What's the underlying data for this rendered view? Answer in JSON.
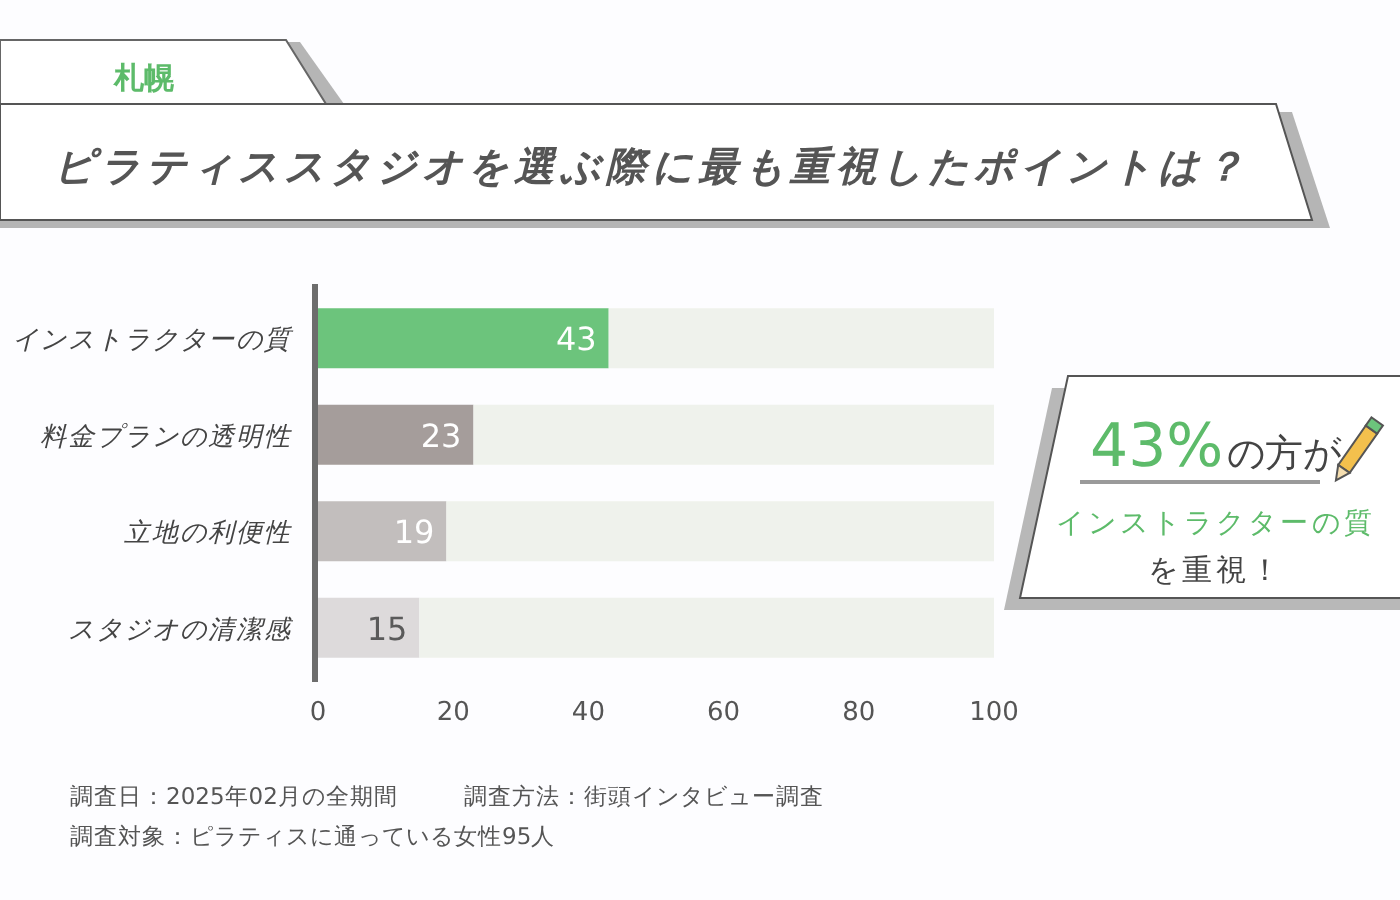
{
  "chart_data": {
    "type": "bar",
    "orientation": "horizontal",
    "stacked": true,
    "subtitle": "札幌",
    "title": "ピラティススタジオを選ぶ際に最も重視したポイントは？",
    "categories": [
      "インストラクターの質",
      "料金プランの透明性",
      "立地の利便性",
      "スタジオの清潔感"
    ],
    "series": [
      {
        "colors": [
          "#6cc47c",
          "#a59d9b",
          "#c2bebd",
          "#dddadb"
        ],
        "values": [
          43,
          23,
          19,
          15
        ],
        "value_labels": [
          "43",
          "23",
          "19",
          "15"
        ]
      },
      {
        "color": "#eff2ec",
        "values": [
          57,
          77,
          81,
          85
        ]
      }
    ],
    "xlim": [
      0,
      100
    ],
    "xticks": [
      0,
      20,
      40,
      60,
      80,
      100
    ],
    "annotations": [
      "43%の方が",
      "インストラクターの質",
      "を重視！",
      "調査日：2025年02月の全期間",
      "調査方法：街頭インタビュー調査",
      "調査対象：ピラティスに通っている女性95人"
    ]
  }
}
